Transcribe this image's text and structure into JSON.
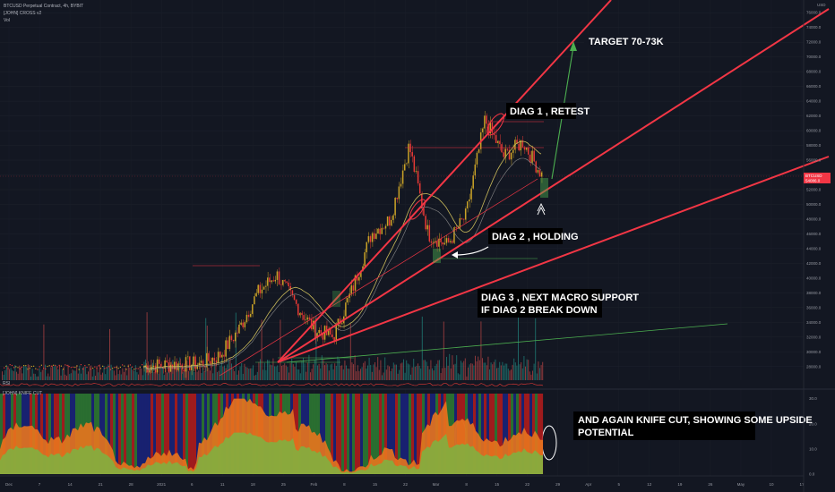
{
  "header": {
    "symbol": "BTCUSD Perpetual Contract, 4h, BYBIT",
    "indicator_1": "[JOHN] CROSS v2",
    "indicator_2": "Vol",
    "currency": "USD",
    "sub_pane_label": "RSI",
    "sub_indicator": "[JOHN] KNIFE CUT"
  },
  "price_tag": {
    "label": "BTCUSD",
    "value": "54086.0"
  },
  "annotations": {
    "target": "TARGET 70-73K",
    "diag1": "DIAG 1 , RETEST",
    "diag2": "DIAG 2 , HOLDING",
    "diag3_line1": "DIAG 3 , NEXT MACRO SUPPORT",
    "diag3_line2": "IF DIAG 2 BREAK DOWN",
    "knife_line1": "AND AGAIN KNIFE CUT, SHOWING SOME UPSIDE",
    "knife_line2": "POTENTIAL"
  },
  "colors": {
    "background": "#131722",
    "diagonal": "#f23645",
    "target_arrow": "#4caf50",
    "up_candle": "#c9a227",
    "down_candle": "#e53935",
    "ma_line": "#c8b95a",
    "knife_orange": "#e8741e",
    "knife_green": "#2e7d32",
    "knife_red": "#b71c1c",
    "knife_blue": "#1a237e"
  },
  "chart_data": {
    "type": "line",
    "title": "",
    "y_axis_ticks": [
      "76000.0",
      "74000.0",
      "72000.0",
      "70000.0",
      "68000.0",
      "66000.0",
      "64000.0",
      "62000.0",
      "60000.0",
      "58000.0",
      "56000.0",
      "54000.0",
      "52000.0",
      "50000.0",
      "48000.0",
      "46000.0",
      "44000.0",
      "42000.0",
      "40000.0",
      "38000.0",
      "36000.0",
      "34000.0",
      "32000.0",
      "30000.0",
      "28000.0"
    ],
    "ylim": [
      27000,
      77000
    ],
    "x_axis_ticks": [
      "Dec",
      "7",
      "14",
      "21",
      "28",
      "2021",
      "6",
      "11",
      "18",
      "25",
      "Feb",
      "8",
      "15",
      "22",
      "Mar",
      "8",
      "15",
      "22",
      "29",
      "Apr",
      "5",
      "12",
      "19",
      "26",
      "May",
      "10",
      "17"
    ],
    "price_series": {
      "name": "BTCUSD",
      "x": [
        "Dec 1",
        "Dec 14",
        "Dec 21",
        "Dec 28",
        "Jan 3",
        "Jan 8",
        "Jan 11",
        "Jan 18",
        "Jan 22",
        "Jan 27",
        "Feb 1",
        "Feb 8",
        "Feb 10",
        "Feb 15",
        "Feb 21",
        "Feb 23",
        "Feb 28",
        "Mar 5",
        "Mar 13",
        "Mar 17",
        "Mar 20",
        "Mar 24"
      ],
      "values": [
        28000,
        28200,
        28300,
        28400,
        29500,
        33000,
        38000,
        40500,
        36500,
        33000,
        32000,
        38500,
        46000,
        48000,
        58000,
        46000,
        44500,
        48500,
        61500,
        56500,
        58500,
        54000
      ]
    },
    "diagonals": [
      {
        "name": "DIAG 1",
        "points": [
          [
            28000,
            "Jan 24"
          ],
          [
            76000,
            "Apr 1"
          ]
        ]
      },
      {
        "name": "DIAG 2",
        "points": [
          [
            28000,
            "Jan 24"
          ],
          [
            77000,
            "May 17"
          ]
        ]
      },
      {
        "name": "DIAG 3",
        "points": [
          [
            28000,
            "Jan 24"
          ],
          [
            57000,
            "May 17"
          ]
        ]
      }
    ],
    "knife_cut": {
      "y_axis_ticks": [
        "30.0",
        "20.0",
        "10.0",
        "0.0"
      ],
      "ylim": [
        0,
        32
      ]
    }
  }
}
